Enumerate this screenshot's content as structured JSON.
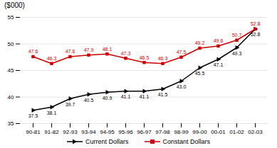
{
  "chart_data": {
    "type": "line",
    "title": "($000)",
    "categories": [
      "90-81",
      "91-82",
      "92-93",
      "93-94",
      "94-95",
      "95-96",
      "96-97",
      "97-98",
      "98-99",
      "99-00",
      "00-01",
      "01-02",
      "02-03"
    ],
    "series": [
      {
        "name": "Current Dollars",
        "color": "#000000",
        "marker": "triangle-right",
        "values": [
          37.5,
          38.1,
          39.7,
          40.5,
          40.9,
          41.1,
          41.1,
          41.5,
          43.0,
          45.5,
          47.1,
          49.3,
          52.8
        ],
        "value_labels": [
          "37.5",
          "38.1",
          "39.7",
          "40.5",
          "40.9",
          "41.1",
          "41.1",
          "41.5",
          "43.0",
          "45.5",
          "47.1",
          "49.3",
          "52.8"
        ]
      },
      {
        "name": "Constant Dollars",
        "color": "#cc0000",
        "marker": "square",
        "values": [
          47.6,
          46.3,
          47.6,
          47.9,
          48.1,
          47.3,
          46.5,
          46.3,
          47.5,
          49.2,
          49.6,
          50.7,
          52.8
        ],
        "value_labels": [
          "47.6",
          "46.3",
          "47.6",
          "47.9",
          "48.1",
          "47.3",
          "46.5",
          "46.3",
          "47.5",
          "49.2",
          "49.6",
          "50.7",
          "52.8"
        ]
      }
    ],
    "ylim": [
      35,
      55
    ],
    "yticks": [
      35,
      40,
      45,
      50,
      55
    ],
    "grid": true,
    "legend": "bottom",
    "data_labels": true
  }
}
